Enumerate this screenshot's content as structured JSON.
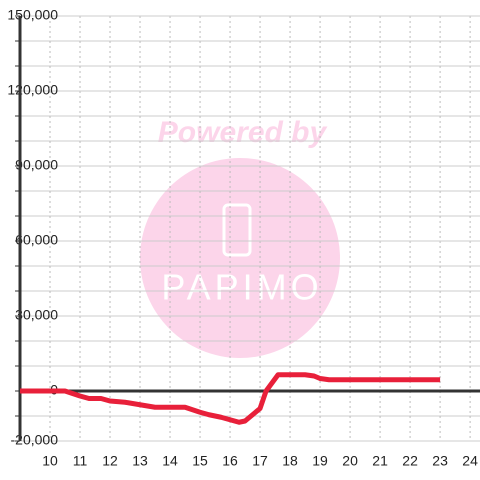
{
  "chart_data": {
    "type": "line",
    "watermark": [
      "Powered by",
      "PAPIMO"
    ],
    "x": [
      9,
      10.5,
      11,
      11.3,
      11.7,
      12,
      12.5,
      13,
      13.5,
      14,
      14.5,
      15,
      15.3,
      15.7,
      16,
      16.3,
      16.5,
      16.7,
      17,
      17.2,
      17.6,
      18,
      18.5,
      18.8,
      19,
      19.3,
      23
    ],
    "series": [
      {
        "color": "#e8203a",
        "values": [
          0,
          0,
          -2000,
          -3000,
          -3000,
          -4000,
          -4500,
          -5500,
          -6500,
          -6500,
          -6500,
          -8500,
          -9500,
          -10500,
          -11500,
          -12500,
          -12000,
          -10000,
          -7000,
          0,
          6500,
          6500,
          6500,
          6000,
          5000,
          4500,
          4500
        ]
      }
    ],
    "xlim": [
      9,
      24.33
    ],
    "xticks": [
      10,
      11,
      12,
      13,
      14,
      15,
      16,
      17,
      18,
      19,
      20,
      21,
      22,
      23,
      24
    ],
    "ylim": [
      -20000,
      150000
    ],
    "yticks": [
      {
        "value": -20000,
        "label": "-20,000"
      },
      0,
      {
        "value": 30000,
        "label": "30,000"
      },
      {
        "value": 60000,
        "label": "60,000"
      },
      {
        "value": 90000,
        "label": "90,000"
      },
      {
        "value": 120000,
        "label": "120,000"
      },
      {
        "value": 150000,
        "label": "150,000"
      }
    ],
    "yminorticks": [
      -10000,
      10000,
      20000,
      40000,
      50000,
      70000,
      80000,
      100000,
      110000,
      130000,
      140000
    ],
    "grid": true
  }
}
